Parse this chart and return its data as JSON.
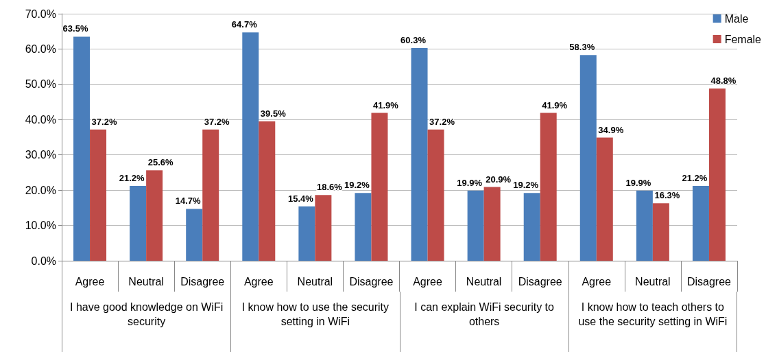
{
  "chart_data": {
    "type": "bar",
    "categories": [
      "Agree",
      "Neutral",
      "Disagree",
      "Agree",
      "Neutral",
      "Disagree",
      "Agree",
      "Neutral",
      "Disagree",
      "Agree",
      "Neutral",
      "Disagree"
    ],
    "series": [
      {
        "name": "Male",
        "color": "#4a7ebb",
        "values": [
          63.5,
          21.2,
          14.7,
          64.7,
          15.4,
          19.2,
          60.3,
          19.9,
          19.2,
          58.3,
          19.9,
          21.2
        ],
        "value_labels": [
          "63.5%",
          "21.2%",
          "14.7%",
          "64.7%",
          "15.4%",
          "19.2%",
          "60.3%",
          "19.9%",
          "19.2%",
          "58.3%",
          "19.9%",
          "21.2%"
        ]
      },
      {
        "name": "Female",
        "color": "#be4b48",
        "values": [
          37.2,
          25.6,
          37.2,
          39.5,
          18.6,
          41.9,
          37.2,
          20.9,
          41.9,
          34.9,
          16.3,
          48.8
        ],
        "value_labels": [
          "37.2%",
          "25.6%",
          "37.2%",
          "39.5%",
          "18.6%",
          "41.9%",
          "37.2%",
          "20.9%",
          "41.9%",
          "34.9%",
          "16.3%",
          "48.8%"
        ]
      }
    ],
    "ylim": [
      0,
      70
    ],
    "yticks": [
      {
        "value": 0,
        "label": "0.0%"
      },
      {
        "value": 10,
        "label": "10.0%"
      },
      {
        "value": 20,
        "label": "20.0%"
      },
      {
        "value": 30,
        "label": "30.0%"
      },
      {
        "value": 40,
        "label": "40.0%"
      },
      {
        "value": 50,
        "label": "50.0%"
      },
      {
        "value": 60,
        "label": "60.0%"
      },
      {
        "value": 70,
        "label": "70.0%"
      }
    ],
    "grid": "y",
    "legend": "top right",
    "annotations": [
      "I have good knowledge on WiFi security",
      "I know how to use the security setting in WiFi",
      "I can explain WiFi security to others",
      "I know how to teach others to use the security setting in WiFi"
    ]
  }
}
